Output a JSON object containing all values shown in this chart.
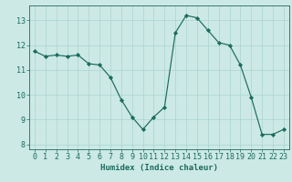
{
  "x": [
    0,
    1,
    2,
    3,
    4,
    5,
    6,
    7,
    8,
    9,
    10,
    11,
    12,
    13,
    14,
    15,
    16,
    17,
    18,
    19,
    20,
    21,
    22,
    23
  ],
  "y": [
    11.75,
    11.55,
    11.6,
    11.55,
    11.6,
    11.25,
    11.2,
    10.7,
    9.8,
    9.1,
    8.6,
    9.1,
    9.5,
    12.5,
    13.2,
    13.1,
    12.6,
    12.1,
    12.0,
    11.2,
    9.9,
    8.4,
    8.4,
    8.6
  ],
  "line_color": "#1a6b5c",
  "marker": "D",
  "marker_size": 2.2,
  "bg_color": "#cce9e5",
  "grid_color": "#aad4cf",
  "xlabel": "Humidex (Indice chaleur)",
  "xlim": [
    -0.5,
    23.5
  ],
  "ylim": [
    7.8,
    13.6
  ],
  "yticks": [
    8,
    9,
    10,
    11,
    12,
    13
  ],
  "xticks": [
    0,
    1,
    2,
    3,
    4,
    5,
    6,
    7,
    8,
    9,
    10,
    11,
    12,
    13,
    14,
    15,
    16,
    17,
    18,
    19,
    20,
    21,
    22,
    23
  ],
  "tick_color": "#1a6b5c",
  "label_fontsize": 6.5,
  "tick_fontsize": 6.0
}
